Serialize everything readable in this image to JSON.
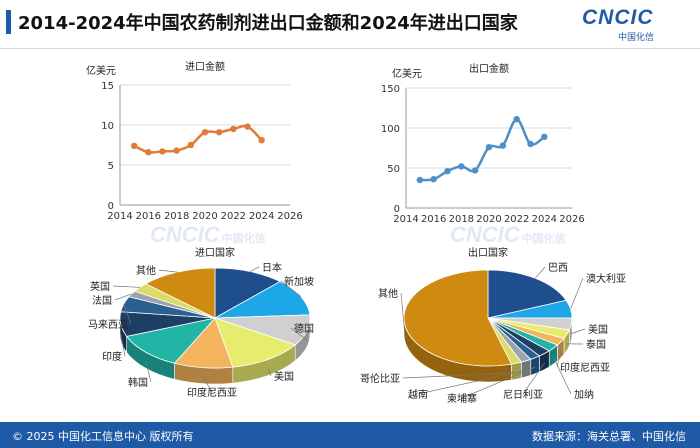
{
  "header": {
    "title": "2014-2024年中国农药制剂进出口金额和2024年进出口国家",
    "logo_text": "CNCIC",
    "logo_sub": "中国化信"
  },
  "watermark": {
    "text": "CNCIC",
    "sub": "中国化信"
  },
  "footer": {
    "copyright": "© 2025 中国化工信息中心  版权所有",
    "source": "数据来源：海关总署、中国化信"
  },
  "colors": {
    "brand": "#1f5aa6",
    "import_line": "#e07b39",
    "export_line": "#4b90c8"
  },
  "chart_data": [
    {
      "type": "line",
      "title": "进口金额",
      "ylabel": "亿美元",
      "x": [
        2015,
        2016,
        2017,
        2018,
        2019,
        2020,
        2021,
        2022,
        2023,
        2024
      ],
      "series": [
        {
          "values": [
            7.4,
            6.6,
            6.7,
            6.8,
            7.5,
            9.1,
            9.1,
            9.5,
            9.8,
            8.1
          ]
        }
      ],
      "xlim": [
        2014,
        2026
      ],
      "ylim": [
        0,
        15
      ],
      "xticks": [
        2014,
        2016,
        2018,
        2020,
        2022,
        2024,
        2026
      ],
      "yticks": [
        0,
        5,
        10,
        15
      ],
      "grid": "horizontal"
    },
    {
      "type": "line",
      "title": "出口金额",
      "ylabel": "亿美元",
      "x": [
        2015,
        2016,
        2017,
        2018,
        2019,
        2020,
        2021,
        2022,
        2023,
        2024
      ],
      "series": [
        {
          "values": [
            35,
            36,
            46,
            52,
            47,
            76,
            78,
            111,
            80,
            89
          ]
        }
      ],
      "xlim": [
        2014,
        2026
      ],
      "ylim": [
        0,
        150
      ],
      "xticks": [
        2014,
        2016,
        2018,
        2020,
        2022,
        2024,
        2026
      ],
      "yticks": [
        0,
        50,
        100,
        150
      ],
      "grid": "horizontal"
    },
    {
      "type": "pie",
      "title": "进口国家",
      "slices": [
        {
          "label": "日本",
          "value": 12,
          "color": "#1f4e8c"
        },
        {
          "label": "新加坡",
          "value": 12,
          "color": "#1ea7e8"
        },
        {
          "label": "德国",
          "value": 10,
          "color": "#d0d0d0"
        },
        {
          "label": "美国",
          "value": 13,
          "color": "#e8ec6e"
        },
        {
          "label": "印度尼西亚",
          "value": 10,
          "color": "#f3b45d"
        },
        {
          "label": "韩国",
          "value": 12,
          "color": "#22b5a6"
        },
        {
          "label": "印度",
          "value": 8,
          "color": "#1d3f66"
        },
        {
          "label": "马来西亚",
          "value": 5,
          "color": "#2a5f8f"
        },
        {
          "label": "法国",
          "value": 2,
          "color": "#9aa3ad"
        },
        {
          "label": "英国",
          "value": 3,
          "color": "#dbdb68"
        },
        {
          "label": "其他",
          "value": 13,
          "color": "#cf8a12"
        }
      ]
    },
    {
      "type": "pie",
      "title": "出口国家",
      "slices": [
        {
          "label": "巴西",
          "value": 19,
          "color": "#1f4e8c"
        },
        {
          "label": "澳大利亚",
          "value": 6,
          "color": "#1ea7e8"
        },
        {
          "label": "美国",
          "value": 4,
          "color": "#d0d0d0"
        },
        {
          "label": "泰国",
          "value": 3,
          "color": "#e8ec6e"
        },
        {
          "label": "印度尼西亚",
          "value": 2.5,
          "color": "#f3b45d"
        },
        {
          "label": "加纳",
          "value": 2.5,
          "color": "#22b5a6"
        },
        {
          "label": "尼日利亚",
          "value": 2.5,
          "color": "#1d3f66"
        },
        {
          "label": "柬埔寨",
          "value": 2,
          "color": "#2a5f8f"
        },
        {
          "label": "越南",
          "value": 2,
          "color": "#9aa3ad"
        },
        {
          "label": "哥伦比亚",
          "value": 2,
          "color": "#dbdb68"
        },
        {
          "label": "其他",
          "value": 54.5,
          "color": "#cf8a12"
        }
      ]
    }
  ]
}
